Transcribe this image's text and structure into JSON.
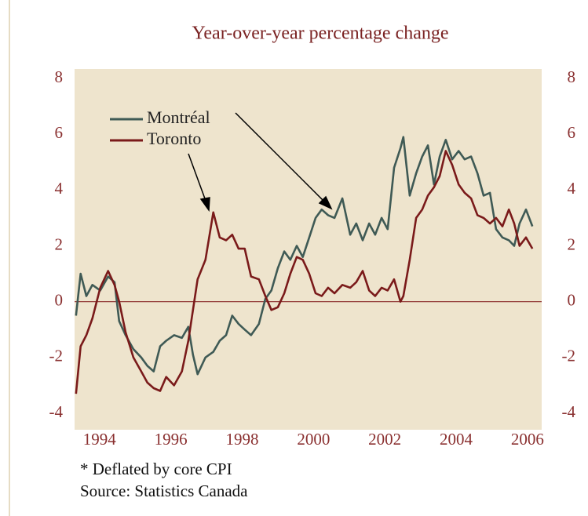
{
  "chart_data": {
    "type": "line",
    "title": "Year-over-year percentage change",
    "notes": [
      "* Deflated by core CPI",
      "Source: Statistics Canada"
    ],
    "x": [
      1993.34,
      1993.47,
      1993.63,
      1993.8,
      1994.02,
      1994.24,
      1994.42,
      1994.55,
      1994.73,
      1994.95,
      1995.17,
      1995.34,
      1995.52,
      1995.7,
      1995.87,
      1996.09,
      1996.31,
      1996.49,
      1996.62,
      1996.75,
      1996.97,
      1997.19,
      1997.37,
      1997.55,
      1997.72,
      1997.9,
      1998.07,
      1998.25,
      1998.47,
      1998.65,
      1998.82,
      1999.0,
      1999.18,
      1999.35,
      1999.53,
      1999.7,
      1999.88,
      2000.06,
      2000.23,
      2000.41,
      2000.59,
      2000.81,
      2001.03,
      2001.2,
      2001.38,
      2001.56,
      2001.73,
      2001.91,
      2002.08,
      2002.26,
      2002.44,
      2002.52,
      2002.7,
      2002.88,
      2003.05,
      2003.21,
      2003.38,
      2003.54,
      2003.71,
      2003.89,
      2004.07,
      2004.24,
      2004.42,
      2004.6,
      2004.77,
      2004.95,
      2005.12,
      2005.3,
      2005.48,
      2005.63,
      2005.78,
      2005.96,
      2006.14
    ],
    "series": [
      {
        "name": "Montréal",
        "color": "#3f5a55",
        "values": [
          -0.5,
          1.0,
          0.2,
          0.6,
          0.4,
          0.9,
          0.7,
          -0.7,
          -1.2,
          -1.7,
          -2.0,
          -2.3,
          -2.5,
          -1.6,
          -1.4,
          -1.2,
          -1.3,
          -0.9,
          -1.9,
          -2.6,
          -2.0,
          -1.8,
          -1.4,
          -1.2,
          -0.5,
          -0.8,
          -1.0,
          -1.2,
          -0.8,
          0.1,
          0.4,
          1.2,
          1.8,
          1.5,
          2.0,
          1.6,
          2.3,
          3.0,
          3.3,
          3.1,
          3.0,
          3.7,
          2.4,
          2.8,
          2.2,
          2.8,
          2.4,
          3.0,
          2.6,
          4.8,
          5.5,
          5.9,
          3.8,
          4.6,
          5.2,
          5.6,
          4.2,
          5.2,
          5.8,
          5.1,
          5.4,
          5.1,
          5.2,
          4.6,
          3.8,
          3.9,
          2.6,
          2.3,
          2.2,
          2.0,
          2.8,
          3.3,
          2.7
        ]
      },
      {
        "name": "Toronto",
        "color": "#7a1a1a",
        "values": [
          -3.3,
          -1.6,
          -1.2,
          -0.6,
          0.5,
          1.1,
          0.6,
          0.0,
          -1.1,
          -2.0,
          -2.5,
          -2.9,
          -3.1,
          -3.2,
          -2.7,
          -3.0,
          -2.5,
          -1.4,
          -0.3,
          0.8,
          1.5,
          3.2,
          2.3,
          2.2,
          2.4,
          1.9,
          1.9,
          0.9,
          0.8,
          0.2,
          -0.3,
          -0.2,
          0.3,
          1.0,
          1.6,
          1.5,
          1.0,
          0.3,
          0.2,
          0.5,
          0.3,
          0.6,
          0.5,
          0.7,
          1.1,
          0.4,
          0.2,
          0.5,
          0.4,
          0.8,
          0.0,
          0.2,
          1.5,
          3.0,
          3.3,
          3.8,
          4.1,
          4.5,
          5.4,
          4.9,
          4.2,
          3.9,
          3.7,
          3.1,
          3.0,
          2.8,
          3.0,
          2.7,
          3.3,
          2.8,
          2.0,
          2.3,
          1.9
        ]
      }
    ],
    "xlim": [
      1993.3,
      2006.4
    ],
    "xticks": [
      1994,
      1996,
      1998,
      2000,
      2002,
      2004,
      2006
    ],
    "ylim": [
      -4,
      8
    ],
    "yticks": [
      -4,
      -2,
      0,
      2,
      4,
      6,
      8
    ],
    "y2lim": [
      -4,
      8
    ],
    "y2ticks": [
      -4,
      -2,
      0,
      2,
      4,
      6,
      8
    ]
  }
}
